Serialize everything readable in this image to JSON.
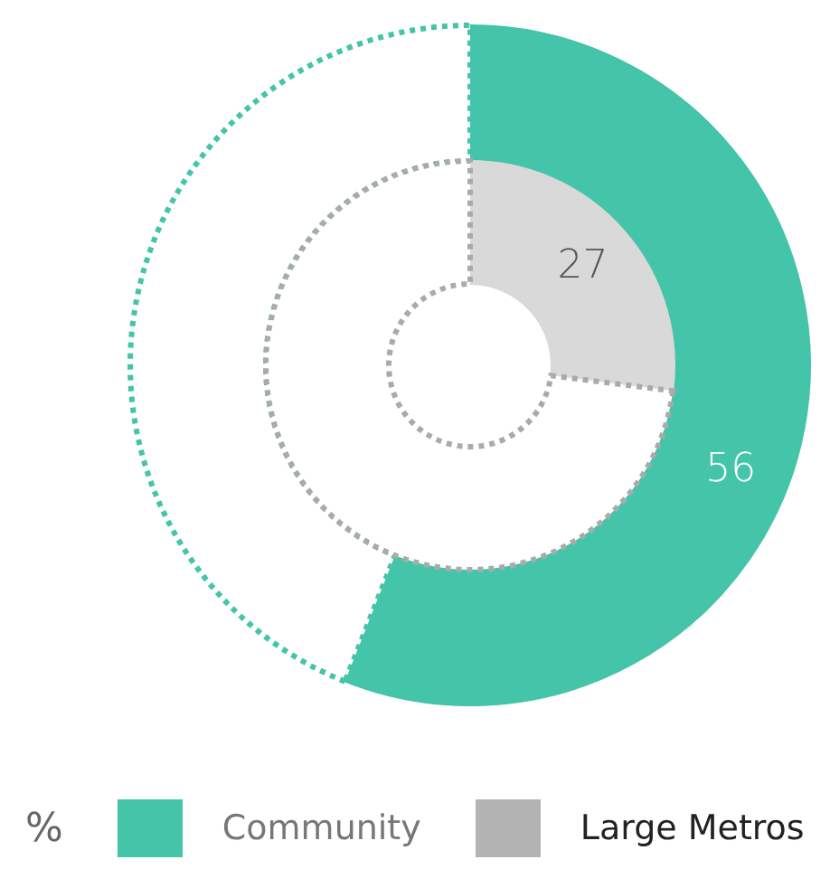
{
  "chart_data": {
    "type": "donut",
    "legend": "bottom left",
    "legend_title": "%",
    "categories": [
      null,
      null
    ],
    "series": [
      {
        "name": "Community",
        "color": "#44c4a8",
        "colors": [
          "#44c4a8",
          "#ffffff"
        ],
        "values": [
          56,
          44
        ],
        "value_labels": [
          "56",
          null
        ]
      },
      {
        "name": "Large Metros",
        "color": "#d9d9d9",
        "colors": [
          "#d9d9d9",
          "#ffffff"
        ],
        "values": [
          27,
          73
        ],
        "value_labels": [
          "27",
          null
        ]
      }
    ]
  }
}
